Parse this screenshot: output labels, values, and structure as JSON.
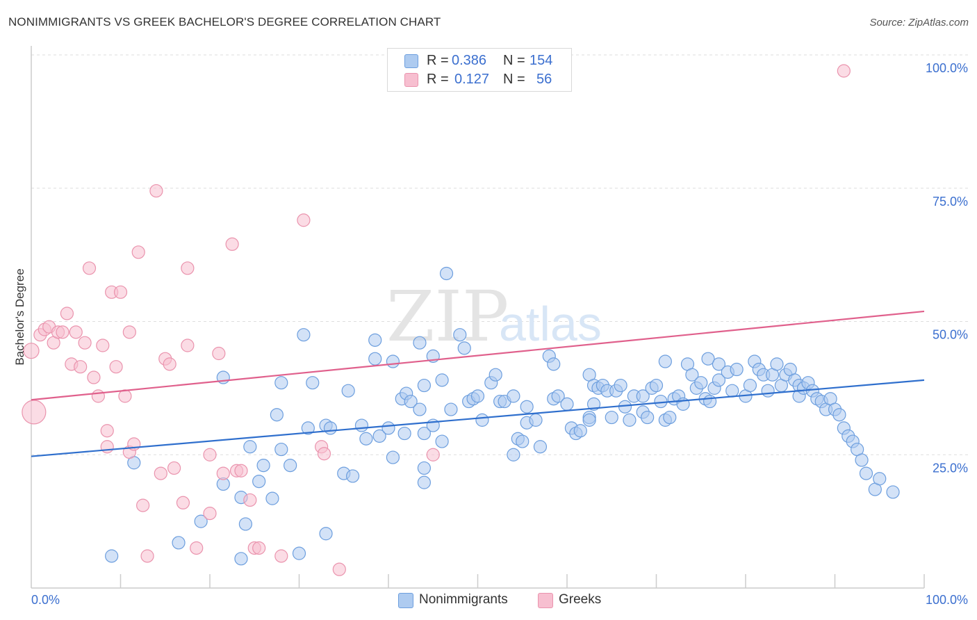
{
  "header": {
    "title": "NONIMMIGRANTS VS GREEK BACHELOR'S DEGREE CORRELATION CHART",
    "source": "Source: ZipAtlas.com"
  },
  "legend": {
    "rows": [
      {
        "r_label": "R =",
        "r_value": "0.386",
        "n_label": "N =",
        "n_value": "154"
      },
      {
        "r_label": "R =",
        "r_value": "0.127",
        "n_label": "N =",
        "n_value": "56"
      }
    ]
  },
  "bottom_legend": {
    "series_a": "Nonimmigrants",
    "series_b": "Greeks"
  },
  "watermark": {
    "zip": "ZIP",
    "atlas": "atlas"
  },
  "colors": {
    "blue_fill": "#aecbf0",
    "blue_stroke": "#6c9ede",
    "blue_line": "#2f6fcd",
    "pink_fill": "#f7bfd0",
    "pink_stroke": "#ea93ad",
    "pink_line": "#e0608c",
    "axis_text": "#3b6fcf",
    "grid": "#dddddd"
  },
  "chart_data": {
    "type": "scatter",
    "title": "NONIMMIGRANTS VS GREEK BACHELOR'S DEGREE CORRELATION CHART",
    "xlabel": "",
    "ylabel": "Bachelor's Degree",
    "xlim": [
      0,
      100
    ],
    "ylim": [
      0,
      100
    ],
    "x_tick_labels": [
      "0.0%",
      "100.0%"
    ],
    "y_tick_labels": [
      "25.0%",
      "50.0%",
      "75.0%",
      "100.0%"
    ],
    "y_ticks": [
      25,
      50,
      75,
      100
    ],
    "series": [
      {
        "name": "Nonimmigrants",
        "R": 0.386,
        "N": 154,
        "trend": {
          "x": [
            0,
            100
          ],
          "y": [
            24.7,
            39.0
          ]
        },
        "points": [
          [
            9,
            6
          ],
          [
            11.5,
            23.5
          ],
          [
            16.5,
            8.5
          ],
          [
            19,
            12.5
          ],
          [
            21.5,
            39.5
          ],
          [
            21.5,
            19.5
          ],
          [
            23.5,
            17
          ],
          [
            23.5,
            5.5
          ],
          [
            24,
            12
          ],
          [
            24.5,
            26.5
          ],
          [
            25.5,
            20
          ],
          [
            26,
            23
          ],
          [
            27,
            16.8
          ],
          [
            27.5,
            32.5
          ],
          [
            28,
            38.5
          ],
          [
            28,
            26
          ],
          [
            29,
            23
          ],
          [
            30,
            6.5
          ],
          [
            30.5,
            47.5
          ],
          [
            31,
            30
          ],
          [
            31.5,
            38.5
          ],
          [
            33,
            10.2
          ],
          [
            33,
            30.5
          ],
          [
            33.5,
            30
          ],
          [
            35,
            21.5
          ],
          [
            36,
            21
          ],
          [
            35.5,
            37
          ],
          [
            37,
            30.5
          ],
          [
            37.5,
            28
          ],
          [
            38.5,
            43
          ],
          [
            38.5,
            46.5
          ],
          [
            39,
            28.5
          ],
          [
            40,
            30
          ],
          [
            40.5,
            24.5
          ],
          [
            40.5,
            42.5
          ],
          [
            41.5,
            35.5
          ],
          [
            41.8,
            29
          ],
          [
            42,
            36.5
          ],
          [
            42.5,
            35
          ],
          [
            43.5,
            33.5
          ],
          [
            43.5,
            46
          ],
          [
            44,
            38
          ],
          [
            44,
            29
          ],
          [
            44,
            22.5
          ],
          [
            44,
            19.8
          ],
          [
            45,
            30.5
          ],
          [
            45,
            43.5
          ],
          [
            46,
            39
          ],
          [
            46,
            27.5
          ],
          [
            46.5,
            59
          ],
          [
            47,
            33.5
          ],
          [
            48,
            47.5
          ],
          [
            48.5,
            45
          ],
          [
            49,
            35
          ],
          [
            49.5,
            35.5
          ],
          [
            50,
            36
          ],
          [
            50.5,
            31.5
          ],
          [
            51.5,
            38.5
          ],
          [
            52,
            40
          ],
          [
            52.5,
            35
          ],
          [
            53,
            35
          ],
          [
            54,
            36
          ],
          [
            54,
            25
          ],
          [
            54.5,
            28
          ],
          [
            55,
            27.5
          ],
          [
            55.5,
            34
          ],
          [
            55.5,
            31
          ],
          [
            56.5,
            31.5
          ],
          [
            57,
            26.5
          ],
          [
            58.5,
            35.5
          ],
          [
            58,
            43.5
          ],
          [
            58.5,
            42
          ],
          [
            59,
            36
          ],
          [
            60,
            34.5
          ],
          [
            60.5,
            30
          ],
          [
            61,
            29
          ],
          [
            61.5,
            29.5
          ],
          [
            62.5,
            32
          ],
          [
            62.5,
            31.5
          ],
          [
            62.5,
            40
          ],
          [
            63,
            34.5
          ],
          [
            63,
            38
          ],
          [
            63.5,
            37.5
          ],
          [
            64,
            38
          ],
          [
            64.5,
            37
          ],
          [
            65,
            32
          ],
          [
            65.5,
            37
          ],
          [
            66,
            38
          ],
          [
            66.5,
            34
          ],
          [
            67,
            31.5
          ],
          [
            67.5,
            36
          ],
          [
            68.5,
            33
          ],
          [
            68.5,
            36
          ],
          [
            69,
            32
          ],
          [
            69.5,
            37.5
          ],
          [
            70,
            38
          ],
          [
            70.5,
            35
          ],
          [
            71,
            31.5
          ],
          [
            71,
            42.5
          ],
          [
            71.5,
            32
          ],
          [
            72,
            35.5
          ],
          [
            72.5,
            36
          ],
          [
            73,
            34.5
          ],
          [
            73.5,
            42
          ],
          [
            74,
            40
          ],
          [
            74.5,
            37.5
          ],
          [
            75,
            38.5
          ],
          [
            75.5,
            35.5
          ],
          [
            75.8,
            43
          ],
          [
            76,
            35
          ],
          [
            76.5,
            37.5
          ],
          [
            77,
            39
          ],
          [
            77,
            42
          ],
          [
            78,
            40.5
          ],
          [
            78.5,
            37
          ],
          [
            79,
            41
          ],
          [
            80,
            36
          ],
          [
            80.5,
            38
          ],
          [
            81,
            42.5
          ],
          [
            81.5,
            41
          ],
          [
            82,
            40
          ],
          [
            82.5,
            37
          ],
          [
            83,
            40
          ],
          [
            83.5,
            42
          ],
          [
            84,
            38
          ],
          [
            84.5,
            40
          ],
          [
            85,
            41
          ],
          [
            85.5,
            39
          ],
          [
            86,
            38
          ],
          [
            86,
            36
          ],
          [
            86.5,
            37.5
          ],
          [
            87,
            38.5
          ],
          [
            87.5,
            37
          ],
          [
            88,
            35.5
          ],
          [
            88.5,
            35
          ],
          [
            89,
            33.5
          ],
          [
            89.5,
            35.5
          ],
          [
            90,
            33.5
          ],
          [
            90.5,
            32.5
          ],
          [
            91,
            30
          ],
          [
            91.5,
            28.5
          ],
          [
            92,
            27.5
          ],
          [
            92.5,
            26
          ],
          [
            93,
            24
          ],
          [
            93.5,
            21.5
          ],
          [
            94.5,
            18.5
          ],
          [
            95,
            20.5
          ],
          [
            96.5,
            18
          ]
        ]
      },
      {
        "name": "Greeks",
        "R": 0.127,
        "N": 56,
        "trend": {
          "x": [
            0,
            100
          ],
          "y": [
            35.3,
            51.9
          ]
        },
        "points": [
          [
            0,
            44.5
          ],
          [
            0.3,
            33
          ],
          [
            1,
            47.5
          ],
          [
            1.5,
            48.5
          ],
          [
            2,
            49
          ],
          [
            2.5,
            46
          ],
          [
            3,
            48
          ],
          [
            3.5,
            48
          ],
          [
            4,
            51.5
          ],
          [
            4.5,
            42
          ],
          [
            5,
            48
          ],
          [
            5.5,
            41.5
          ],
          [
            6,
            46
          ],
          [
            6.5,
            60
          ],
          [
            7,
            39.5
          ],
          [
            7.5,
            36
          ],
          [
            8,
            45.5
          ],
          [
            8.5,
            29.5
          ],
          [
            8.5,
            26.5
          ],
          [
            9,
            55.5
          ],
          [
            9.5,
            41.5
          ],
          [
            10,
            55.5
          ],
          [
            10.5,
            36
          ],
          [
            11,
            25.5
          ],
          [
            11,
            48
          ],
          [
            11.5,
            27
          ],
          [
            12,
            63
          ],
          [
            12.5,
            15.5
          ],
          [
            13,
            6
          ],
          [
            14,
            74.5
          ],
          [
            14.5,
            21.5
          ],
          [
            15,
            43
          ],
          [
            15.5,
            42
          ],
          [
            16,
            22.5
          ],
          [
            17,
            16
          ],
          [
            17.5,
            45.5
          ],
          [
            17.5,
            60
          ],
          [
            18.5,
            7.5
          ],
          [
            20,
            25
          ],
          [
            20,
            14
          ],
          [
            21,
            44
          ],
          [
            21.5,
            21.5
          ],
          [
            22.5,
            64.5
          ],
          [
            23,
            22
          ],
          [
            23.5,
            22
          ],
          [
            24.5,
            16.5
          ],
          [
            25,
            7.5
          ],
          [
            25.5,
            7.5
          ],
          [
            28,
            6
          ],
          [
            30.5,
            69
          ],
          [
            32.5,
            26.5
          ],
          [
            32.8,
            25.2
          ],
          [
            34.5,
            3.5
          ],
          [
            45,
            25
          ],
          [
            91,
            97
          ]
        ]
      }
    ]
  }
}
